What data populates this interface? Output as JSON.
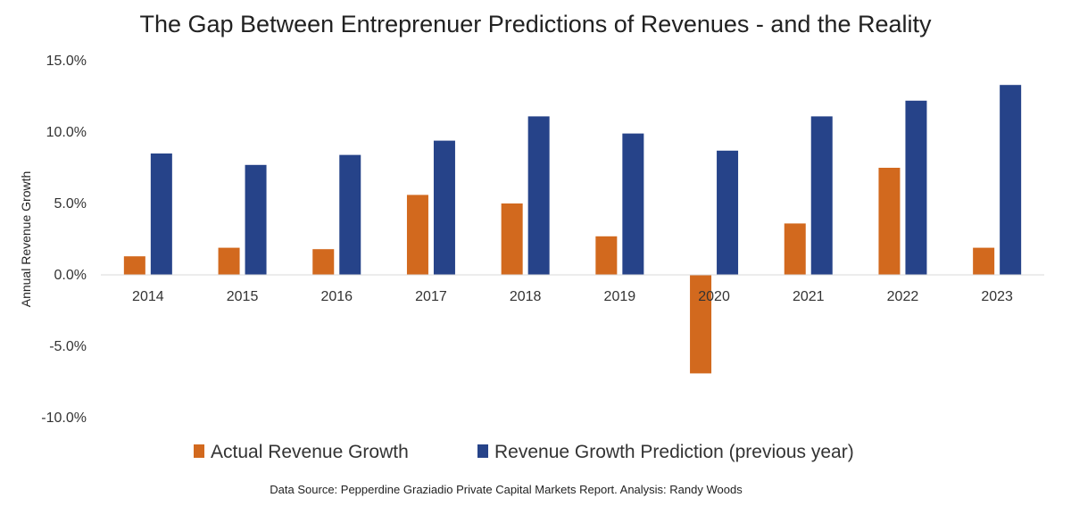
{
  "chart_data": {
    "type": "bar",
    "title": "The Gap Between Entreprenuer Predictions of Revenues - and the Reality",
    "xlabel": "",
    "ylabel": "Annual Revenue Growth",
    "categories": [
      "2014",
      "2015",
      "2016",
      "2017",
      "2018",
      "2019",
      "2020",
      "2021",
      "2022",
      "2023"
    ],
    "series": [
      {
        "name": "Actual Revenue Growth",
        "color": "#D2691E",
        "values": [
          1.3,
          1.9,
          1.8,
          5.6,
          5.0,
          2.7,
          -6.9,
          3.6,
          7.5,
          1.9
        ]
      },
      {
        "name": "Revenue Growth Prediction (previous year)",
        "color": "#264389",
        "values": [
          8.5,
          7.7,
          8.4,
          9.4,
          11.1,
          9.9,
          8.7,
          11.1,
          12.2,
          13.3
        ]
      }
    ],
    "ylim": [
      -10,
      15
    ],
    "yticks": [
      -10,
      -5,
      0,
      5,
      10,
      15
    ],
    "ytick_labels": [
      "-10.0%",
      "-5.0%",
      "0.0%",
      "5.0%",
      "10.0%",
      "15.0%"
    ],
    "grid": false,
    "legend": "bottom"
  },
  "source_note": "Data Source: Pepperdine Graziadio Private Capital Markets Report.  Analysis: Randy Woods"
}
